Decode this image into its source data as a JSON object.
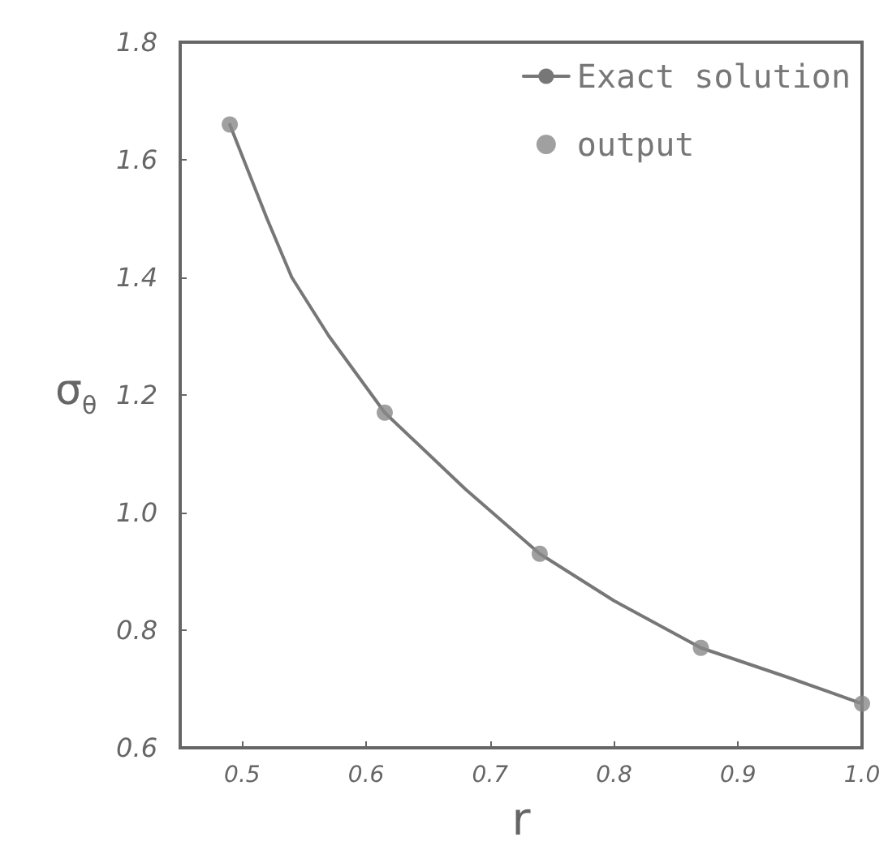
{
  "chart_data": {
    "type": "line",
    "xlabel": "r",
    "ylabel": "σ$_{θ}$",
    "xlim": [
      0.45,
      1.0
    ],
    "xticks": [
      0.5,
      0.6,
      0.7,
      0.8,
      0.9,
      {
        "value": 1,
        "label": "1.0"
      }
    ],
    "ylim": [
      0.6,
      1.8
    ],
    "yticks": [
      0.6,
      0.8,
      {
        "value": 1,
        "label": "1.0"
      },
      1.2,
      1.4,
      1.6,
      1.8
    ],
    "grid": false,
    "legend": "top right",
    "series": [
      {
        "name": "Exact solution",
        "color": "#777777",
        "marker": "none",
        "line_style": "solid",
        "x": [
          0.49,
          0.52,
          0.54,
          0.57,
          0.615,
          0.68,
          0.74,
          0.8,
          0.87,
          0.94,
          1.0
        ],
        "values": [
          1.66,
          1.5,
          1.4,
          1.3,
          1.17,
          1.04,
          0.93,
          0.85,
          0.77,
          0.72,
          0.675
        ]
      },
      {
        "name": "output",
        "type": "scatter",
        "color": "#888888",
        "marker": "circle",
        "x": [
          0.49,
          0.615,
          0.74,
          0.87,
          1.0
        ],
        "values": [
          1.66,
          1.17,
          0.93,
          0.77,
          0.675
        ]
      }
    ]
  }
}
